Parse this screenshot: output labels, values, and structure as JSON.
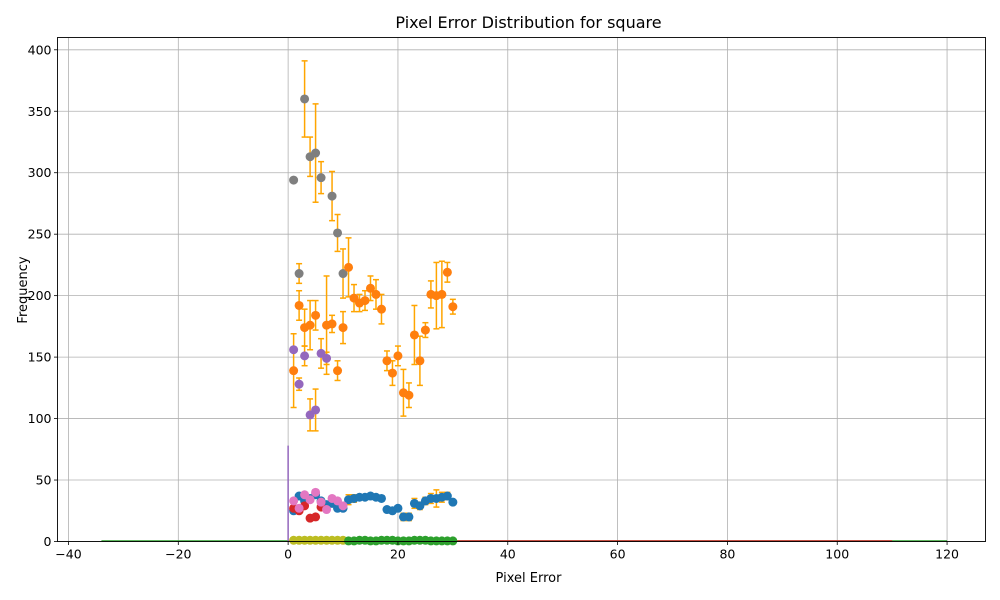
{
  "chart_data": {
    "type": "scatter",
    "title": "Pixel Error Distribution for square",
    "xlabel": "Pixel Error",
    "ylabel": "Frequency",
    "xlim": [
      -42,
      127
    ],
    "ylim": [
      0,
      410
    ],
    "xticks": [
      -40,
      -20,
      0,
      20,
      40,
      60,
      80,
      100,
      120
    ],
    "yticks": [
      0,
      50,
      100,
      150,
      200,
      250,
      300,
      350,
      400
    ],
    "grid": true,
    "errorbar_color": "#ffa500",
    "series": [
      {
        "color": "#7f7f7f",
        "points": [
          {
            "x": 1,
            "y": 294,
            "err": 0
          },
          {
            "x": 2,
            "y": 218,
            "err": 8
          },
          {
            "x": 3,
            "y": 360,
            "err": 31
          },
          {
            "x": 4,
            "y": 313,
            "err": 16
          },
          {
            "x": 5,
            "y": 316,
            "err": 40
          },
          {
            "x": 6,
            "y": 296,
            "err": 13
          },
          {
            "x": 8,
            "y": 281,
            "err": 20
          },
          {
            "x": 9,
            "y": 251,
            "err": 15
          },
          {
            "x": 10,
            "y": 218,
            "err": 20
          }
        ]
      },
      {
        "color": "#ff7f0e",
        "points": [
          {
            "x": 1,
            "y": 139,
            "err": 30
          },
          {
            "x": 2,
            "y": 192,
            "err": 12
          },
          {
            "x": 3,
            "y": 174,
            "err": 15
          },
          {
            "x": 4,
            "y": 176,
            "err": 20
          },
          {
            "x": 5,
            "y": 184,
            "err": 12
          },
          {
            "x": 7,
            "y": 176,
            "err": 40
          },
          {
            "x": 8,
            "y": 177,
            "err": 7
          },
          {
            "x": 9,
            "y": 139,
            "err": 8
          },
          {
            "x": 10,
            "y": 174,
            "err": 13
          },
          {
            "x": 11,
            "y": 223,
            "err": 24
          },
          {
            "x": 12,
            "y": 198,
            "err": 11
          },
          {
            "x": 13,
            "y": 194,
            "err": 7
          },
          {
            "x": 14,
            "y": 196,
            "err": 8
          },
          {
            "x": 15,
            "y": 206,
            "err": 10
          },
          {
            "x": 16,
            "y": 201,
            "err": 12
          },
          {
            "x": 17,
            "y": 189,
            "err": 12
          },
          {
            "x": 18,
            "y": 147,
            "err": 8
          },
          {
            "x": 19,
            "y": 137,
            "err": 10
          },
          {
            "x": 20,
            "y": 151,
            "err": 8
          },
          {
            "x": 21,
            "y": 121,
            "err": 19
          },
          {
            "x": 22,
            "y": 119,
            "err": 10
          },
          {
            "x": 23,
            "y": 168,
            "err": 24
          },
          {
            "x": 24,
            "y": 147,
            "err": 20
          },
          {
            "x": 25,
            "y": 172,
            "err": 6
          },
          {
            "x": 26,
            "y": 201,
            "err": 11
          },
          {
            "x": 27,
            "y": 200,
            "err": 27
          },
          {
            "x": 28,
            "y": 201,
            "err": 27
          },
          {
            "x": 29,
            "y": 219,
            "err": 8
          },
          {
            "x": 30,
            "y": 191,
            "err": 6
          }
        ]
      },
      {
        "color": "#9467bd",
        "points": [
          {
            "x": 1,
            "y": 156,
            "err": 0
          },
          {
            "x": 2,
            "y": 128,
            "err": 5
          },
          {
            "x": 3,
            "y": 151,
            "err": 8
          },
          {
            "x": 4,
            "y": 103,
            "err": 13
          },
          {
            "x": 5,
            "y": 107,
            "err": 17
          },
          {
            "x": 6,
            "y": 153,
            "err": 12
          },
          {
            "x": 7,
            "y": 149,
            "err": 5
          }
        ]
      },
      {
        "color": "#1f77b4",
        "points": [
          {
            "x": 1,
            "y": 25,
            "err": 0
          },
          {
            "x": 2,
            "y": 37,
            "err": 0
          },
          {
            "x": 3,
            "y": 33,
            "err": 0
          },
          {
            "x": 4,
            "y": 35,
            "err": 0
          },
          {
            "x": 5,
            "y": 38,
            "err": 0
          },
          {
            "x": 6,
            "y": 33,
            "err": 0
          },
          {
            "x": 7,
            "y": 30,
            "err": 0
          },
          {
            "x": 8,
            "y": 31,
            "err": 0
          },
          {
            "x": 9,
            "y": 27,
            "err": 0
          },
          {
            "x": 10,
            "y": 27,
            "err": 0
          },
          {
            "x": 11,
            "y": 34,
            "err": 4
          },
          {
            "x": 12,
            "y": 35,
            "err": 3
          },
          {
            "x": 13,
            "y": 36,
            "err": 2
          },
          {
            "x": 14,
            "y": 36,
            "err": 2
          },
          {
            "x": 15,
            "y": 37,
            "err": 2
          },
          {
            "x": 16,
            "y": 36,
            "err": 2
          },
          {
            "x": 17,
            "y": 35,
            "err": 2
          },
          {
            "x": 18,
            "y": 26,
            "err": 2
          },
          {
            "x": 19,
            "y": 25,
            "err": 2
          },
          {
            "x": 20,
            "y": 27,
            "err": 2
          },
          {
            "x": 21,
            "y": 20,
            "err": 3
          },
          {
            "x": 22,
            "y": 20,
            "err": 3
          },
          {
            "x": 23,
            "y": 31,
            "err": 4
          },
          {
            "x": 24,
            "y": 29,
            "err": 3
          },
          {
            "x": 25,
            "y": 33,
            "err": 3
          },
          {
            "x": 26,
            "y": 35,
            "err": 4
          },
          {
            "x": 27,
            "y": 35,
            "err": 7
          },
          {
            "x": 28,
            "y": 36,
            "err": 4
          },
          {
            "x": 29,
            "y": 37,
            "err": 3
          },
          {
            "x": 30,
            "y": 32,
            "err": 2
          }
        ]
      },
      {
        "color": "#d62728",
        "points": [
          {
            "x": 1,
            "y": 27,
            "err": 0
          },
          {
            "x": 2,
            "y": 25,
            "err": 0
          },
          {
            "x": 3,
            "y": 29,
            "err": 0
          },
          {
            "x": 4,
            "y": 19,
            "err": 0
          },
          {
            "x": 5,
            "y": 20,
            "err": 0
          },
          {
            "x": 6,
            "y": 28,
            "err": 0
          }
        ]
      },
      {
        "color": "#e377c2",
        "points": [
          {
            "x": 1,
            "y": 33,
            "err": 0
          },
          {
            "x": 2,
            "y": 27,
            "err": 0
          },
          {
            "x": 3,
            "y": 38,
            "err": 0
          },
          {
            "x": 4,
            "y": 34,
            "err": 0
          },
          {
            "x": 5,
            "y": 40,
            "err": 0
          },
          {
            "x": 6,
            "y": 32,
            "err": 0
          },
          {
            "x": 7,
            "y": 26,
            "err": 0
          },
          {
            "x": 8,
            "y": 35,
            "err": 0
          },
          {
            "x": 9,
            "y": 33,
            "err": 0
          },
          {
            "x": 10,
            "y": 29,
            "err": 0
          }
        ]
      },
      {
        "color": "#bcbd22",
        "points": [
          {
            "x": 1,
            "y": 1,
            "err": 0
          },
          {
            "x": 2,
            "y": 1,
            "err": 0
          },
          {
            "x": 3,
            "y": 1,
            "err": 0
          },
          {
            "x": 4,
            "y": 1,
            "err": 0
          },
          {
            "x": 5,
            "y": 1,
            "err": 0
          },
          {
            "x": 6,
            "y": 1,
            "err": 0
          },
          {
            "x": 7,
            "y": 1,
            "err": 0
          },
          {
            "x": 8,
            "y": 1,
            "err": 0
          },
          {
            "x": 9,
            "y": 1,
            "err": 0
          },
          {
            "x": 10,
            "y": 1,
            "err": 0
          }
        ]
      },
      {
        "color": "#2ca02c",
        "points": [
          {
            "x": 11,
            "y": 0.5,
            "err": 0
          },
          {
            "x": 12,
            "y": 0.5,
            "err": 0
          },
          {
            "x": 13,
            "y": 1,
            "err": 0
          },
          {
            "x": 14,
            "y": 1,
            "err": 0
          },
          {
            "x": 15,
            "y": 0.5,
            "err": 0
          },
          {
            "x": 16,
            "y": 0.5,
            "err": 0
          },
          {
            "x": 17,
            "y": 1,
            "err": 0
          },
          {
            "x": 18,
            "y": 1,
            "err": 0
          },
          {
            "x": 19,
            "y": 1,
            "err": 0
          },
          {
            "x": 20,
            "y": 0.5,
            "err": 0
          },
          {
            "x": 21,
            "y": 0.5,
            "err": 0
          },
          {
            "x": 22,
            "y": 0.5,
            "err": 0
          },
          {
            "x": 23,
            "y": 1,
            "err": 0
          },
          {
            "x": 24,
            "y": 1,
            "err": 0
          },
          {
            "x": 25,
            "y": 1,
            "err": 0
          },
          {
            "x": 26,
            "y": 0.5,
            "err": 0
          },
          {
            "x": 27,
            "y": 0.5,
            "err": 0
          },
          {
            "x": 28,
            "y": 0.5,
            "err": 0
          },
          {
            "x": 29,
            "y": 0.5,
            "err": 0
          },
          {
            "x": 30,
            "y": 0.5,
            "err": 0
          }
        ]
      }
    ],
    "baseline_lines": [
      {
        "color": "#2ca02c",
        "x_range": [
          -34,
          120
        ],
        "y": 0
      },
      {
        "color": "#d62728",
        "x_range": [
          0,
          110
        ],
        "y": 0
      }
    ],
    "spike": {
      "color": "#9467bd",
      "x": 0,
      "y": 78
    }
  }
}
